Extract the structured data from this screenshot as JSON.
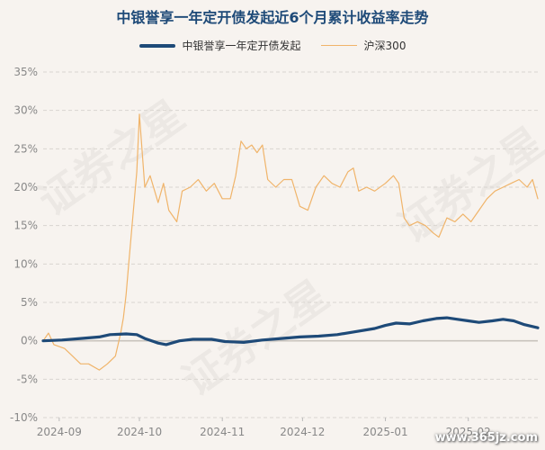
{
  "title": "中银誉享一年定开债发起近6个月累计收益率走势",
  "watermark_text": "www.365jz.com",
  "background_watermark": "证券之星",
  "colors": {
    "fund": "#1e4a78",
    "index": "#f0b46a",
    "grid": "#d9d5d0",
    "axis_text": "#888888"
  },
  "chart_data": {
    "type": "line",
    "title": "中银誉享一年定开债发起近6个月累计收益率走势",
    "ylim": [
      -10,
      35
    ],
    "y_ticks": [
      "-10%",
      "-5%",
      "0%",
      "5%",
      "10%",
      "15%",
      "20%",
      "25%",
      "30%",
      "35%"
    ],
    "x_ticks": [
      "2024-09",
      "2024-10",
      "2024-11",
      "2024-12",
      "2025-01",
      "2025-02"
    ],
    "x_range": [
      "2024-08-26",
      "2025-02-27"
    ],
    "grid": true,
    "legend_position": "top-center",
    "series": [
      {
        "name": "中银誉享一年定开债发起",
        "points": [
          [
            "2024-08-26",
            0.0
          ],
          [
            "2024-09-02",
            0.1
          ],
          [
            "2024-09-09",
            0.3
          ],
          [
            "2024-09-16",
            0.5
          ],
          [
            "2024-09-20",
            0.8
          ],
          [
            "2024-09-26",
            0.9
          ],
          [
            "2024-09-30",
            0.8
          ],
          [
            "2024-10-03",
            0.3
          ],
          [
            "2024-10-08",
            -0.3
          ],
          [
            "2024-10-11",
            -0.5
          ],
          [
            "2024-10-16",
            0.0
          ],
          [
            "2024-10-21",
            0.2
          ],
          [
            "2024-10-28",
            0.2
          ],
          [
            "2024-11-02",
            -0.1
          ],
          [
            "2024-11-09",
            -0.2
          ],
          [
            "2024-11-16",
            0.1
          ],
          [
            "2024-11-23",
            0.3
          ],
          [
            "2024-11-30",
            0.5
          ],
          [
            "2024-12-07",
            0.6
          ],
          [
            "2024-12-14",
            0.8
          ],
          [
            "2024-12-21",
            1.2
          ],
          [
            "2024-12-28",
            1.6
          ],
          [
            "2025-01-01",
            2.0
          ],
          [
            "2025-01-05",
            2.3
          ],
          [
            "2025-01-10",
            2.2
          ],
          [
            "2025-01-15",
            2.6
          ],
          [
            "2025-01-20",
            2.9
          ],
          [
            "2025-01-24",
            3.0
          ],
          [
            "2025-01-28",
            2.8
          ],
          [
            "2025-02-01",
            2.6
          ],
          [
            "2025-02-05",
            2.4
          ],
          [
            "2025-02-10",
            2.6
          ],
          [
            "2025-02-14",
            2.8
          ],
          [
            "2025-02-18",
            2.6
          ],
          [
            "2025-02-22",
            2.1
          ],
          [
            "2025-02-27",
            1.7
          ]
        ]
      },
      {
        "name": "沪深300",
        "points": [
          [
            "2024-08-26",
            0.0
          ],
          [
            "2024-08-28",
            1.0
          ],
          [
            "2024-08-30",
            -0.5
          ],
          [
            "2024-09-03",
            -1.0
          ],
          [
            "2024-09-06",
            -2.0
          ],
          [
            "2024-09-09",
            -3.0
          ],
          [
            "2024-09-12",
            -3.0
          ],
          [
            "2024-09-16",
            -3.8
          ],
          [
            "2024-09-19",
            -3.0
          ],
          [
            "2024-09-22",
            -2.0
          ],
          [
            "2024-09-24",
            1.0
          ],
          [
            "2024-09-25",
            3.0
          ],
          [
            "2024-09-26",
            6.0
          ],
          [
            "2024-09-27",
            10.0
          ],
          [
            "2024-09-28",
            14.0
          ],
          [
            "2024-09-30",
            22.0
          ],
          [
            "2024-10-01",
            29.5
          ],
          [
            "2024-10-03",
            20.0
          ],
          [
            "2024-10-05",
            21.5
          ],
          [
            "2024-10-08",
            18.0
          ],
          [
            "2024-10-10",
            20.5
          ],
          [
            "2024-10-12",
            17.0
          ],
          [
            "2024-10-15",
            15.5
          ],
          [
            "2024-10-17",
            19.5
          ],
          [
            "2024-10-20",
            20.0
          ],
          [
            "2024-10-23",
            21.0
          ],
          [
            "2024-10-26",
            19.5
          ],
          [
            "2024-10-29",
            20.5
          ],
          [
            "2024-11-01",
            18.5
          ],
          [
            "2024-11-04",
            18.5
          ],
          [
            "2024-11-06",
            21.5
          ],
          [
            "2024-11-08",
            26.0
          ],
          [
            "2024-11-10",
            25.0
          ],
          [
            "2024-11-12",
            25.5
          ],
          [
            "2024-11-14",
            24.5
          ],
          [
            "2024-11-16",
            25.5
          ],
          [
            "2024-11-18",
            21.0
          ],
          [
            "2024-11-21",
            20.0
          ],
          [
            "2024-11-24",
            21.0
          ],
          [
            "2024-11-27",
            21.0
          ],
          [
            "2024-11-30",
            17.5
          ],
          [
            "2024-12-03",
            17.0
          ],
          [
            "2024-12-06",
            20.0
          ],
          [
            "2024-12-09",
            21.5
          ],
          [
            "2024-12-12",
            20.5
          ],
          [
            "2024-12-15",
            20.0
          ],
          [
            "2024-12-18",
            22.0
          ],
          [
            "2024-12-20",
            22.5
          ],
          [
            "2024-12-22",
            19.5
          ],
          [
            "2024-12-25",
            20.0
          ],
          [
            "2024-12-28",
            19.5
          ],
          [
            "2025-01-01",
            20.5
          ],
          [
            "2025-01-04",
            21.5
          ],
          [
            "2025-01-06",
            20.5
          ],
          [
            "2025-01-08",
            16.0
          ],
          [
            "2025-01-10",
            15.0
          ],
          [
            "2025-01-13",
            15.5
          ],
          [
            "2025-01-16",
            15.0
          ],
          [
            "2025-01-19",
            14.0
          ],
          [
            "2025-01-21",
            13.5
          ],
          [
            "2025-01-24",
            16.0
          ],
          [
            "2025-01-27",
            15.5
          ],
          [
            "2025-01-30",
            16.5
          ],
          [
            "2025-02-02",
            15.5
          ],
          [
            "2025-02-05",
            17.0
          ],
          [
            "2025-02-08",
            18.5
          ],
          [
            "2025-02-11",
            19.5
          ],
          [
            "2025-02-14",
            20.0
          ],
          [
            "2025-02-17",
            20.5
          ],
          [
            "2025-02-20",
            21.0
          ],
          [
            "2025-02-23",
            20.0
          ],
          [
            "2025-02-25",
            21.0
          ],
          [
            "2025-02-27",
            18.5
          ]
        ]
      }
    ]
  }
}
